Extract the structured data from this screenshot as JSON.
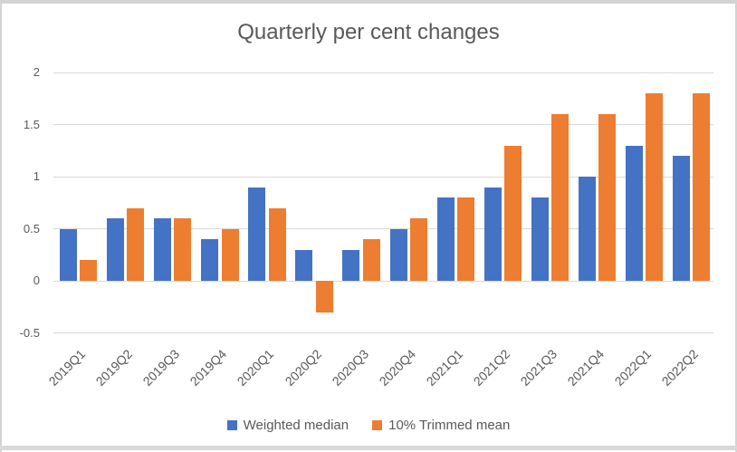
{
  "chart_data": {
    "type": "bar",
    "title": "Quarterly per cent changes",
    "categories": [
      "2019Q1",
      "2019Q2",
      "2019Q3",
      "2019Q4",
      "2020Q1",
      "2020Q2",
      "2020Q3",
      "2020Q4",
      "2021Q1",
      "2021Q2",
      "2021Q3",
      "2021Q4",
      "2022Q1",
      "2022Q2"
    ],
    "series": [
      {
        "name": "Weighted median",
        "color": "#4472C4",
        "values": [
          0.5,
          0.6,
          0.6,
          0.4,
          0.9,
          0.3,
          0.3,
          0.5,
          0.8,
          0.9,
          0.8,
          1.0,
          1.3,
          1.2
        ]
      },
      {
        "name": "10% Trimmed mean",
        "color": "#ED7D31",
        "values": [
          0.2,
          0.7,
          0.6,
          0.5,
          0.7,
          -0.3,
          0.4,
          0.6,
          0.8,
          1.3,
          1.6,
          1.6,
          1.8,
          1.8
        ]
      }
    ],
    "xlabel": "",
    "ylabel": "",
    "ylim": [
      -0.5,
      2
    ],
    "yticks": [
      2,
      1.5,
      1,
      0.5,
      0,
      -0.5
    ],
    "grid": true,
    "legend_position": "bottom",
    "gridline_color": "#D9D9D9",
    "text_color": "#595959"
  }
}
